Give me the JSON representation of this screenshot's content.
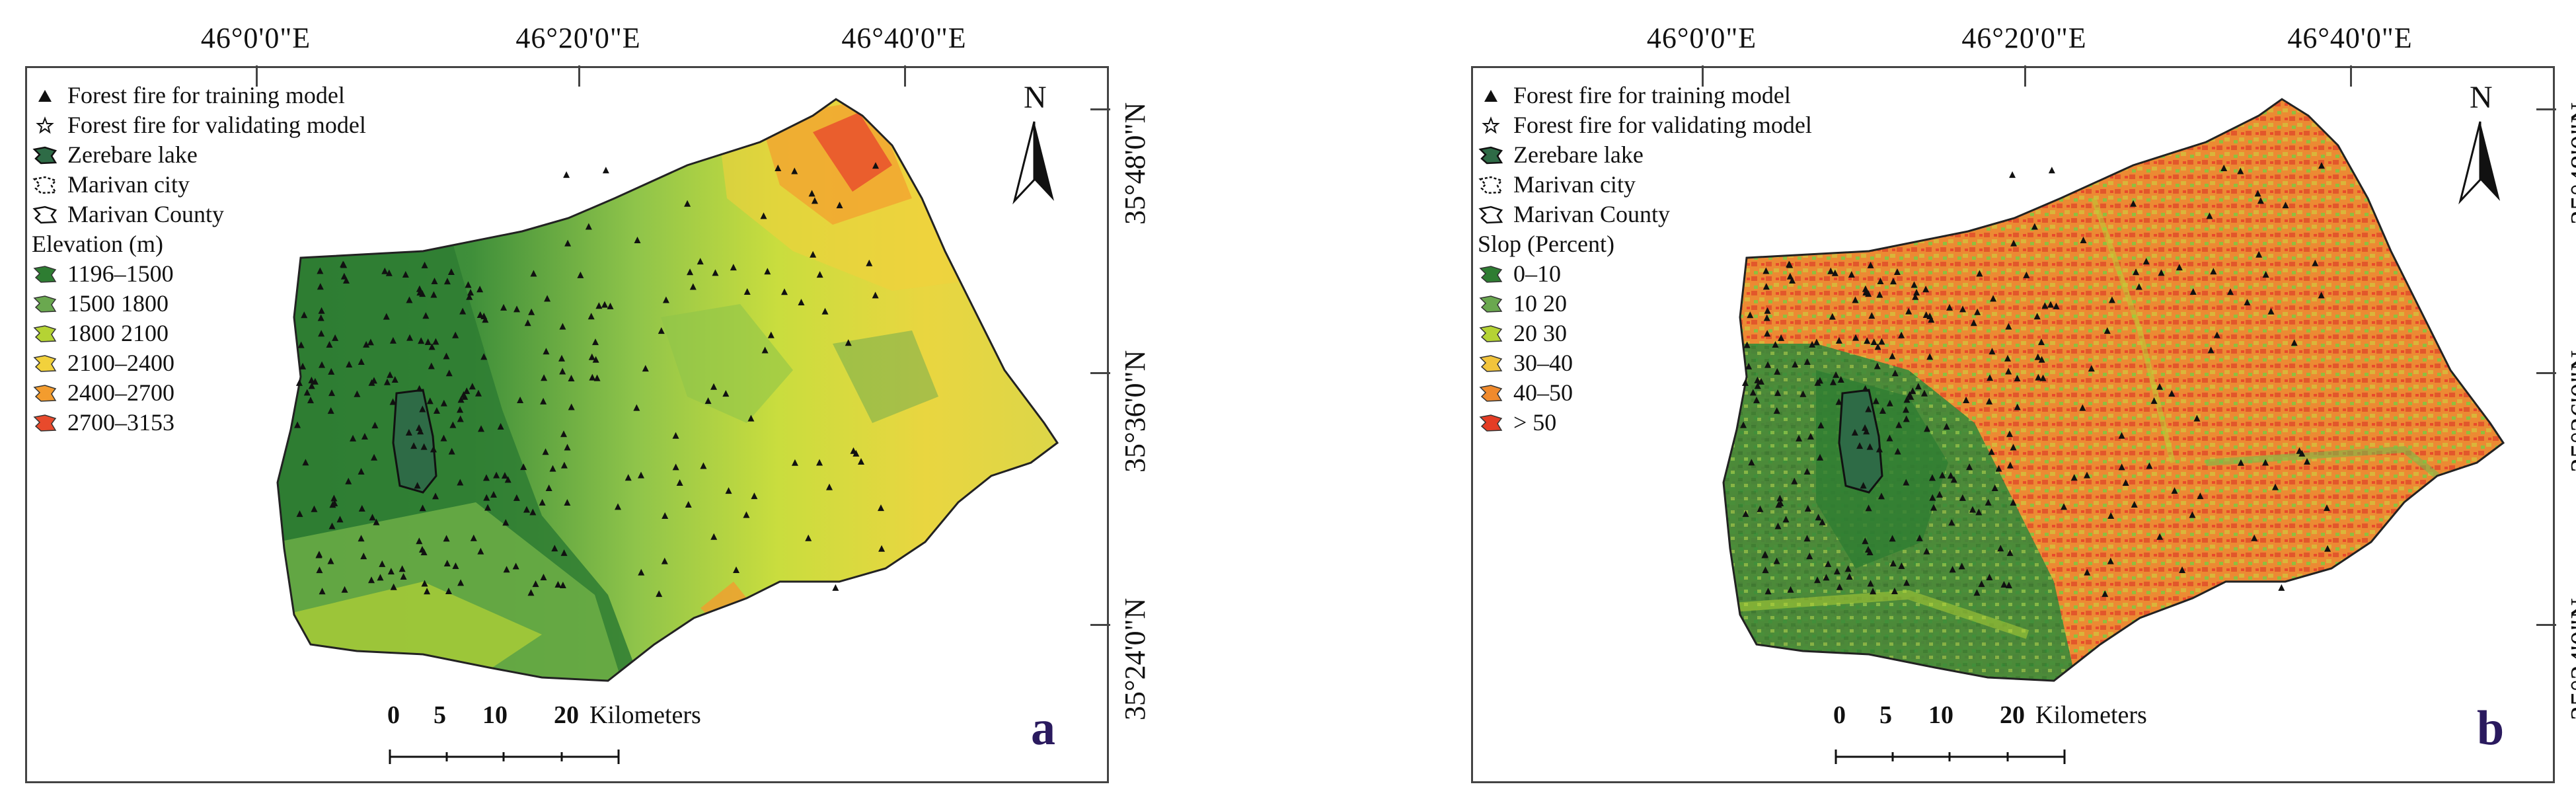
{
  "panels": [
    {
      "letter": "a",
      "legend_title": "Elevation (m)",
      "classes": [
        {
          "label": "1196–1500",
          "color": "#2e7d32"
        },
        {
          "label": "1500  1800",
          "color": "#6aa84f"
        },
        {
          "label": "1800  2100",
          "color": "#b5d334"
        },
        {
          "label": "2100–2400",
          "color": "#f2d13c"
        },
        {
          "label": "2400–2700",
          "color": "#f39c2e"
        },
        {
          "label": "2700–3153",
          "color": "#e84a2c"
        }
      ]
    },
    {
      "letter": "b",
      "legend_title": "Slop (Percent)",
      "classes": [
        {
          "label": "0–10",
          "color": "#2e7d32"
        },
        {
          "label": "10  20",
          "color": "#6aa84f"
        },
        {
          "label": "20  30",
          "color": "#b5d334"
        },
        {
          "label": "30–40",
          "color": "#f2c43c"
        },
        {
          "label": "40–50",
          "color": "#f08a2c"
        },
        {
          "label": "> 50",
          "color": "#e43d25"
        }
      ]
    }
  ],
  "common_legend": {
    "training": "Forest fire for training model",
    "validating": "Forest fire for validating model",
    "lake": "Zerebare lake",
    "city": "Marivan city",
    "county": "Marivan County"
  },
  "lon_ticks": [
    "46°0'0\"E",
    "46°20'0\"E",
    "46°40'0\"E"
  ],
  "lat_ticks": [
    "35°48'0\"N",
    "35°36'0\"N",
    "35°24'0\"N"
  ],
  "north_label": "N",
  "scale_bar": {
    "labels": [
      "0",
      "5",
      "10",
      "20"
    ],
    "unit": "Kilometers"
  }
}
